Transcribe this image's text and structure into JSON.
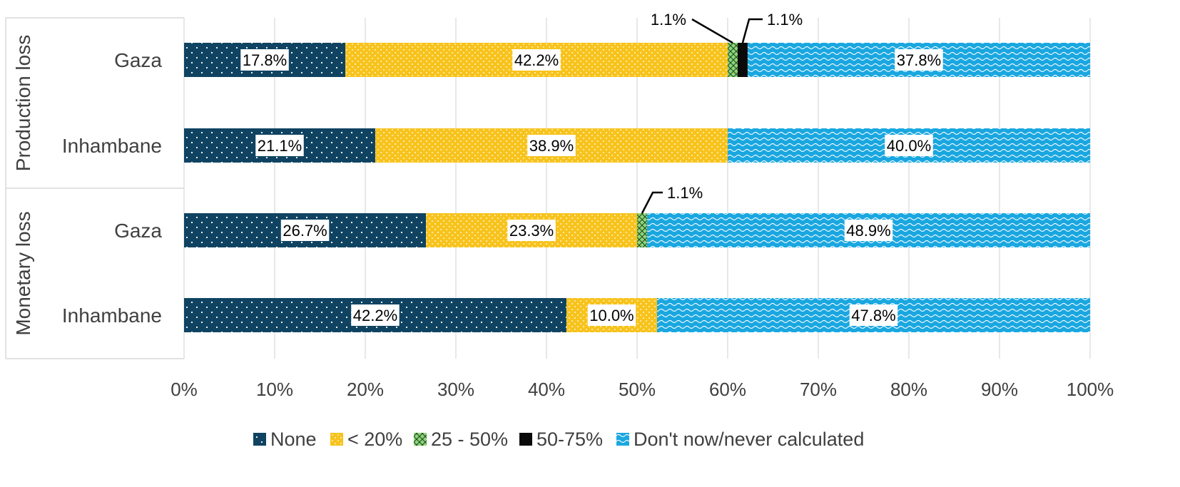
{
  "chart_data": {
    "type": "bar",
    "orientation": "horizontal",
    "stacked": "percent",
    "groups": [
      {
        "label": "Production loss",
        "categories": [
          "Gaza",
          "Inhambane"
        ]
      },
      {
        "label": "Monetary loss",
        "categories": [
          "Gaza",
          "Inhambane"
        ]
      }
    ],
    "categories": [
      "Gaza",
      "Inhambane",
      "Gaza",
      "Inhambane"
    ],
    "series": [
      {
        "name": "None",
        "color": "#0f4361",
        "pattern": "dots",
        "values": [
          17.8,
          21.1,
          26.7,
          42.2
        ],
        "labels": [
          "17.8%",
          "21.1%",
          "26.7%",
          "42.2%"
        ]
      },
      {
        "name": "< 20%",
        "color": "#f7c31c",
        "pattern": "dots",
        "values": [
          42.2,
          38.9,
          23.3,
          10.0
        ],
        "labels": [
          "42.2%",
          "38.9%",
          "23.3%",
          "10.0%"
        ]
      },
      {
        "name": "25 - 50%",
        "color": "#8fd47e",
        "pattern": "cross",
        "values": [
          1.1,
          0,
          1.1,
          0
        ],
        "labels": [
          "1.1%",
          "",
          "1.1%",
          ""
        ]
      },
      {
        "name": "50-75%",
        "color": "#0a0a0a",
        "pattern": "solid",
        "values": [
          1.1,
          0,
          0,
          0
        ],
        "labels": [
          "1.1%",
          "",
          "",
          ""
        ]
      },
      {
        "name": "Don't now/never calculated",
        "color": "#1aa7e0",
        "pattern": "wave",
        "values": [
          37.8,
          40.0,
          48.9,
          47.8
        ],
        "labels": [
          "37.8%",
          "40.0%",
          "48.9%",
          "47.8%"
        ]
      }
    ],
    "xticks": [
      "0%",
      "10%",
      "20%",
      "30%",
      "40%",
      "50%",
      "60%",
      "70%",
      "80%",
      "90%",
      "100%"
    ],
    "xlim": [
      0,
      100
    ],
    "grid": "vertical",
    "legend": "bottom"
  }
}
